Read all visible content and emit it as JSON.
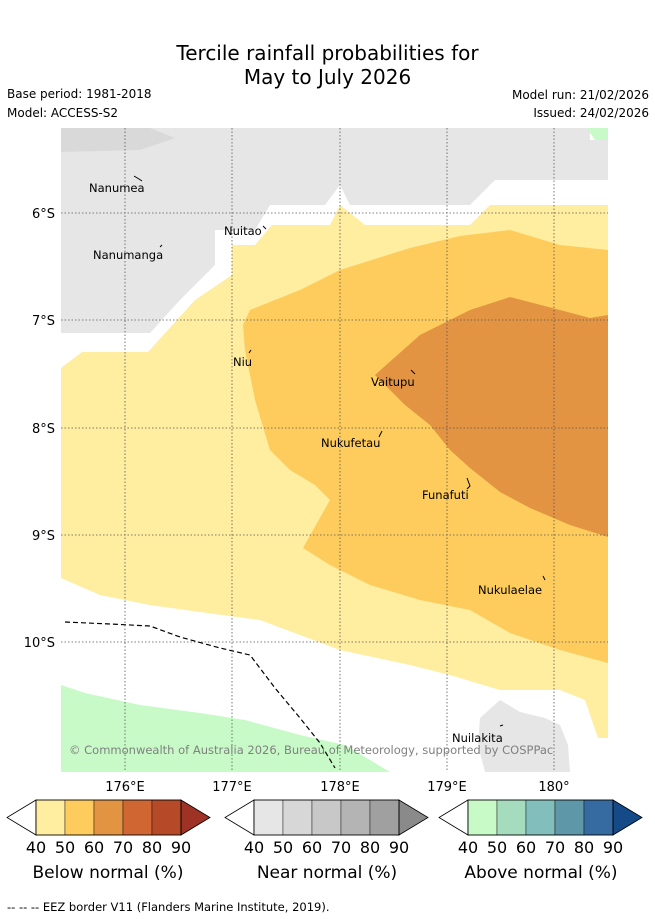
{
  "title_line1": "Tercile rainfall probabilities for",
  "title_line2": "May to July 2026",
  "base_period": "Base period: 1981-2018",
  "model": "Model: ACCESS-S2",
  "model_run": "Model run: 21/02/2026",
  "issued": "Issued: 24/02/2026",
  "lat_labels": [
    "6°S",
    "7°S",
    "8°S",
    "9°S",
    "10°S"
  ],
  "lon_labels": [
    "176°E",
    "177°E",
    "178°E",
    "179°E",
    "180°"
  ],
  "places": {
    "nanumea": "Nanumea",
    "nanumanga": "Nanumanga",
    "nuitao": "Nuitao",
    "niu": "Niu",
    "vaitupu": "Vaitupu",
    "nukufetau": "Nukufetau",
    "funafuti": "Funafuti",
    "nukulaelae": "Nukulaelae",
    "nuilakita": "Nuilakita"
  },
  "copyright": "© Commonwealth of Australia 2026, Bureau of Meteorology, supported by COSPPac",
  "colorbars": [
    {
      "label": "Below normal (%)",
      "ticks": [
        "40",
        "50",
        "60",
        "70",
        "80",
        "90"
      ],
      "colors": [
        "#ffeda0",
        "#fecc5c",
        "#e29443",
        "#d06632",
        "#b64a28",
        "#9e3224"
      ]
    },
    {
      "label": "Near normal (%)",
      "ticks": [
        "40",
        "50",
        "60",
        "70",
        "80",
        "90"
      ],
      "colors": [
        "#e6e6e6",
        "#d7d7d7",
        "#c8c8c8",
        "#b4b4b4",
        "#a0a0a0",
        "#8a8a8a"
      ]
    },
    {
      "label": "Above normal (%)",
      "ticks": [
        "40",
        "50",
        "60",
        "70",
        "80",
        "90"
      ],
      "colors": [
        "#c8fac8",
        "#a5dcbe",
        "#82bebb",
        "#5e98a8",
        "#356ba0",
        "#134a87"
      ]
    }
  ],
  "footer": "-- -- -- EEZ border V11 (Flanders Marine Institute, 2019)."
}
